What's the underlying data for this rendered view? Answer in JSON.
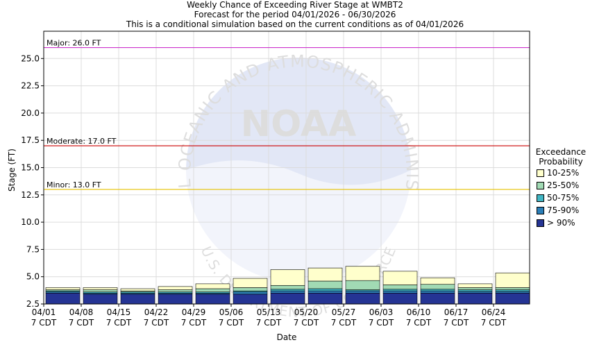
{
  "titles": {
    "line1": "Weekly Chance of Exceeding River Stage at WMBT2",
    "line2": "Forecast for the period 04/01/2026 - 06/30/2026",
    "line3": "This is a conditional simulation based on the current conditions as of 04/01/2026"
  },
  "watermark": {
    "logo": "NOAA",
    "ring_text": "NATIONAL OCEANIC AND ATMOSPHERIC ADMINISTRATION",
    "bottom_text": "U.S. DEPARTMENT OF COMMERCE"
  },
  "legend": {
    "title_line1": "Exceedance",
    "title_line2": "Probability",
    "items": [
      {
        "label": "10-25%",
        "color": "#ffffcc"
      },
      {
        "label": "25-50%",
        "color": "#a1dab4"
      },
      {
        "label": "50-75%",
        "color": "#41b6c4"
      },
      {
        "label": "75-90%",
        "color": "#2c7fb8"
      },
      {
        "label": "> 90%",
        "color": "#253494"
      }
    ]
  },
  "chart_data": {
    "type": "bar",
    "subtype": "stacked-floating",
    "xlabel": "Date",
    "ylabel": "Stage (FT)",
    "ylim": [
      2.5,
      27.5
    ],
    "yticks": [
      "2.5",
      "5.0",
      "7.5",
      "10.0",
      "12.5",
      "15.0",
      "17.5",
      "20.0",
      "22.5",
      "25.0"
    ],
    "grid": true,
    "legend_position": "right",
    "categories": [
      "04/01",
      "04/08",
      "04/15",
      "04/22",
      "04/29",
      "05/06",
      "05/13",
      "05/20",
      "05/27",
      "06/03",
      "06/10",
      "06/17",
      "06/24"
    ],
    "category_sublabel": "7 CDT",
    "series_colors": [
      "#253494",
      "#2c7fb8",
      "#41b6c4",
      "#a1dab4",
      "#ffffcc"
    ],
    "bars": [
      {
        "bottom": 2.5,
        "levels": [
          3.5,
          3.6,
          3.7,
          3.8,
          4.0
        ]
      },
      {
        "bottom": 2.5,
        "levels": [
          3.4,
          3.5,
          3.6,
          3.8,
          4.0
        ]
      },
      {
        "bottom": 2.5,
        "levels": [
          3.4,
          3.5,
          3.6,
          3.7,
          3.9
        ]
      },
      {
        "bottom": 2.5,
        "levels": [
          3.4,
          3.5,
          3.6,
          3.8,
          4.1
        ]
      },
      {
        "bottom": 2.5,
        "levels": [
          3.4,
          3.5,
          3.6,
          3.9,
          4.35
        ]
      },
      {
        "bottom": 2.5,
        "levels": [
          3.4,
          3.6,
          3.7,
          4.0,
          4.85
        ]
      },
      {
        "bottom": 2.5,
        "levels": [
          3.5,
          3.7,
          3.85,
          4.2,
          5.65
        ]
      },
      {
        "bottom": 2.5,
        "levels": [
          3.5,
          3.7,
          3.9,
          4.6,
          5.8
        ]
      },
      {
        "bottom": 2.5,
        "levels": [
          3.5,
          3.7,
          3.8,
          4.65,
          5.95
        ]
      },
      {
        "bottom": 2.5,
        "levels": [
          3.5,
          3.7,
          3.85,
          4.25,
          5.5
        ]
      },
      {
        "bottom": 2.5,
        "levels": [
          3.5,
          3.7,
          3.85,
          4.3,
          4.9
        ]
      },
      {
        "bottom": 2.5,
        "levels": [
          3.5,
          3.65,
          3.8,
          4.0,
          4.35
        ]
      },
      {
        "bottom": 2.5,
        "levels": [
          3.5,
          3.65,
          3.8,
          4.0,
          5.35
        ]
      }
    ],
    "flood_levels": [
      {
        "label": "Major: 26.0 FT",
        "value": 26.0,
        "color": "#cc33cc"
      },
      {
        "label": "Moderate: 17.0 FT",
        "value": 17.0,
        "color": "#cc0000"
      },
      {
        "label": "Minor: 13.0 FT",
        "value": 13.0,
        "color": "#e6c200"
      }
    ]
  }
}
